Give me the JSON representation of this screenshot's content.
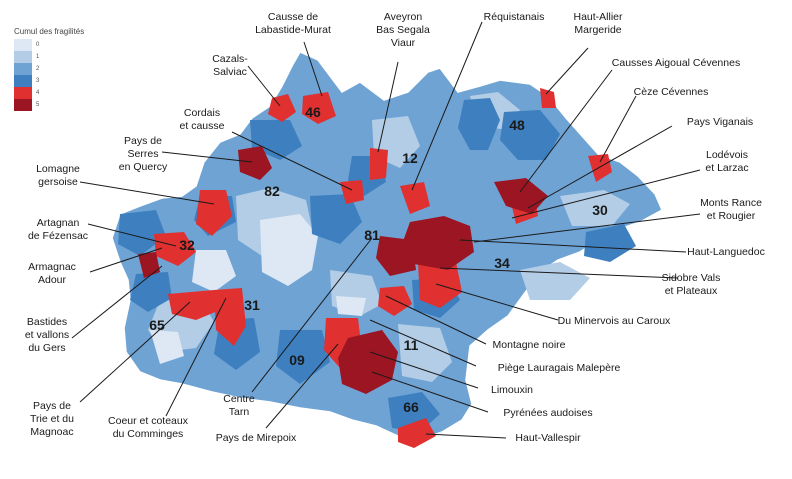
{
  "legend": {
    "title": "Cumul des fragilités",
    "items": [
      {
        "label": "0",
        "color": "#dde8f4"
      },
      {
        "label": "1",
        "color": "#b3cde6"
      },
      {
        "label": "2",
        "color": "#6fa3d4"
      },
      {
        "label": "3",
        "color": "#3d7fbf"
      },
      {
        "label": "4",
        "color": "#e03030"
      },
      {
        "label": "5",
        "color": "#9b1522"
      }
    ]
  },
  "departments": [
    "46",
    "48",
    "12",
    "82",
    "30",
    "32",
    "81",
    "34",
    "65",
    "31",
    "11",
    "09",
    "66"
  ],
  "callouts": [
    {
      "id": "causse-labastide",
      "lines": [
        "Causse de",
        "Labastide-Murat"
      ]
    },
    {
      "id": "aveyron-segala",
      "lines": [
        "Aveyron",
        "Bas Segala",
        "Viaur"
      ]
    },
    {
      "id": "requistanais",
      "lines": [
        "Réquistanais"
      ]
    },
    {
      "id": "haut-allier",
      "lines": [
        "Haut-Allier",
        "Margeride"
      ]
    },
    {
      "id": "cazals",
      "lines": [
        "Cazals-",
        "Salviac"
      ]
    },
    {
      "id": "causses-aigoual",
      "lines": [
        "Causses Aigoual Cévennes"
      ]
    },
    {
      "id": "cordais",
      "lines": [
        "Cordais",
        "et causse"
      ]
    },
    {
      "id": "ceze",
      "lines": [
        "Cèze Cévennes"
      ]
    },
    {
      "id": "serres-quercy",
      "lines": [
        "Pays de",
        "Serres",
        "en Quercy"
      ]
    },
    {
      "id": "viganais",
      "lines": [
        "Pays Viganais"
      ]
    },
    {
      "id": "lodevois",
      "lines": [
        "Lodévois",
        "et Larzac"
      ]
    },
    {
      "id": "lomagne",
      "lines": [
        "Lomagne",
        "gersoise"
      ]
    },
    {
      "id": "monts-rance",
      "lines": [
        "Monts Rance",
        "et Rougier"
      ]
    },
    {
      "id": "artagnan",
      "lines": [
        "Artagnan",
        "de Fézensac"
      ]
    },
    {
      "id": "haut-languedoc",
      "lines": [
        "Haut-Languedoc"
      ]
    },
    {
      "id": "armagnac",
      "lines": [
        "Armagnac",
        "Adour"
      ]
    },
    {
      "id": "sidobre",
      "lines": [
        "Sidobre Vals",
        "et Plateaux"
      ]
    },
    {
      "id": "bastides",
      "lines": [
        "Bastides",
        "et vallons",
        "du Gers"
      ]
    },
    {
      "id": "minervois",
      "lines": [
        "Du Minervois au Caroux"
      ]
    },
    {
      "id": "montagne-noire",
      "lines": [
        "Montagne noire"
      ]
    },
    {
      "id": "piege",
      "lines": [
        "Piège Lauragais Malepère"
      ]
    },
    {
      "id": "limouxin",
      "lines": [
        "Limouxin"
      ]
    },
    {
      "id": "pays-trie",
      "lines": [
        "Pays de",
        "Trie et du",
        "Magnoac"
      ]
    },
    {
      "id": "coeur-comminges",
      "lines": [
        "Coeur et coteaux",
        "du Comminges"
      ]
    },
    {
      "id": "centre-tarn",
      "lines": [
        "Centre",
        "Tarn"
      ]
    },
    {
      "id": "pyrenees-audoises",
      "lines": [
        "Pyrénées audoises"
      ]
    },
    {
      "id": "mirepoix",
      "lines": [
        "Pays de Mirepoix"
      ]
    },
    {
      "id": "haut-vallespir",
      "lines": [
        "Haut-Vallespir"
      ]
    }
  ]
}
